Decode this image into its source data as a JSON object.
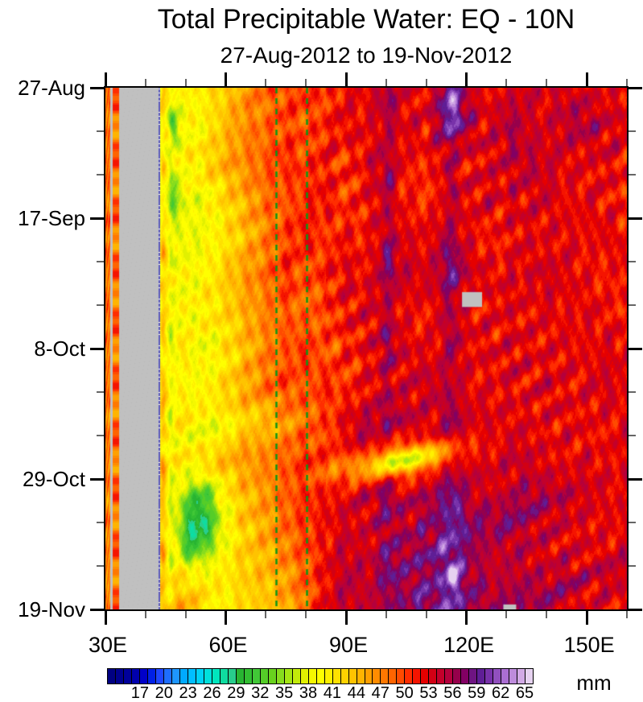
{
  "chart_data": {
    "type": "heatmap",
    "subtype": "hovmoller-time-longitude",
    "title": "Total Precipitable Water: EQ - 10N",
    "subtitle": "27-Aug-2012 to 19-Nov-2012",
    "unit": "mm",
    "x_axis": {
      "range_lon": [
        30,
        160
      ],
      "major_ticks": [
        {
          "label": "30E",
          "lon": 30
        },
        {
          "label": "60E",
          "lon": 60
        },
        {
          "label": "90E",
          "lon": 90
        },
        {
          "label": "120E",
          "lon": 120
        },
        {
          "label": "150E",
          "lon": 150
        }
      ],
      "minor_tick_lons": [
        40,
        50,
        70,
        80,
        100,
        110,
        130,
        140,
        160
      ]
    },
    "y_axis": {
      "range_days": [
        0,
        84
      ],
      "major_ticks": [
        {
          "label": "27-Aug",
          "day": 0
        },
        {
          "label": "17-Sep",
          "day": 21
        },
        {
          "label": "8-Oct",
          "day": 42
        },
        {
          "label": "29-Oct",
          "day": 63
        },
        {
          "label": "19-Nov",
          "day": 84
        }
      ],
      "minor_tick_days": [
        7,
        14,
        28,
        35,
        49,
        56,
        70,
        77
      ]
    },
    "colorbar": {
      "unit_label": "mm",
      "value_min": 13,
      "value_max": 66,
      "box_step": 1,
      "tick_labels": [
        17,
        20,
        23,
        26,
        29,
        32,
        35,
        38,
        41,
        44,
        47,
        50,
        53,
        56,
        59,
        62,
        65
      ],
      "colors": [
        "#000082",
        "#00008F",
        "#00009B",
        "#0000AD",
        "#0000C8",
        "#0020E6",
        "#1E46FF",
        "#1E6EFF",
        "#1E96FF",
        "#00AAFF",
        "#00BEFF",
        "#00D2F5",
        "#00E0DC",
        "#00E6BE",
        "#0FDCA0",
        "#28CD8C",
        "#28B432",
        "#32BE32",
        "#41C837",
        "#55CD28",
        "#69D21E",
        "#87DC1E",
        "#A5E614",
        "#C3EB0A",
        "#E1F000",
        "#F5F800",
        "#FFFF00",
        "#FFF000",
        "#FFE100",
        "#FFD200",
        "#FFC300",
        "#FFB400",
        "#FFA000",
        "#FF8C00",
        "#FF7800",
        "#FF6400",
        "#FF4B00",
        "#FF2D00",
        "#F51400",
        "#E60000",
        "#D20014",
        "#C3002B",
        "#B4003C",
        "#96004B",
        "#820064",
        "#6E1482",
        "#5F1E96",
        "#7832AA",
        "#9150BE",
        "#AA6ED2",
        "#BE8CDC",
        "#D2AAE6",
        "#E6D2F0"
      ]
    },
    "missing_color": "#C0C0C0",
    "masked_lon_band": [
      31.2,
      43.2
    ],
    "coast_red_stripe_lon": [
      31.9,
      33.4
    ],
    "field_edge_line_lon": [
      43.2,
      43.7
    ],
    "left_strip": {
      "lon_band": [
        30,
        31.2
      ],
      "values_by_row": [
        48,
        47,
        48,
        47,
        48,
        47,
        48,
        47,
        48,
        47,
        48,
        47,
        48,
        47,
        48
      ]
    },
    "missing_rects": [
      {
        "lon": [
          118.9,
          123.9
        ],
        "day": [
          32.9,
          35.3
        ]
      },
      {
        "lon": [
          129.2,
          132.4
        ],
        "day": [
          83.2,
          84
        ]
      }
    ],
    "reference_lines": {
      "color": "#0F9614",
      "style": "dashed",
      "lons": [
        72.5,
        80.2
      ]
    },
    "field": {
      "comment": "Approximate TPW (mm) grid read from the shaded plot; rows = days since 27-Aug-2012 step 6, cols = lon 45E..160E step 5",
      "lon_start": 45,
      "lon_step": 5,
      "day_step": 6,
      "values": [
        [
          41,
          40,
          41,
          43,
          46,
          48,
          50,
          51,
          50,
          52,
          53,
          55,
          53,
          52,
          57,
          53,
          52,
          53,
          54,
          53,
          54,
          53,
          52,
          53
        ],
        [
          40,
          39,
          40,
          44,
          47,
          48,
          50,
          49,
          51,
          53,
          52,
          54,
          53,
          52,
          58,
          55,
          53,
          55,
          54,
          53,
          55,
          56,
          54,
          53
        ],
        [
          39,
          40,
          42,
          45,
          47,
          49,
          51,
          50,
          52,
          50,
          53,
          55,
          52,
          51,
          54,
          52,
          53,
          54,
          55,
          54,
          53,
          52,
          53,
          52
        ],
        [
          39,
          38,
          39,
          42,
          45,
          48,
          49,
          51,
          52,
          50,
          52,
          54,
          51,
          50,
          53,
          52,
          54,
          52,
          53,
          54,
          52,
          53,
          52,
          51
        ],
        [
          40,
          38,
          39,
          41,
          44,
          47,
          50,
          52,
          50,
          52,
          51,
          55,
          53,
          52,
          56,
          53,
          51,
          52,
          53,
          52,
          53,
          52,
          53,
          52
        ],
        [
          41,
          39,
          40,
          43,
          46,
          48,
          51,
          49,
          51,
          53,
          52,
          56,
          54,
          53,
          57,
          54,
          53,
          52,
          53,
          54,
          53,
          52,
          51,
          53
        ],
        [
          40,
          39,
          41,
          42,
          45,
          47,
          49,
          48,
          50,
          52,
          53,
          54,
          52,
          51,
          55,
          53,
          52,
          53,
          52,
          53,
          52,
          53,
          52,
          51
        ],
        [
          39,
          41,
          38,
          41,
          44,
          47,
          49,
          51,
          49,
          51,
          52,
          55,
          53,
          52,
          54,
          52,
          53,
          52,
          53,
          52,
          53,
          52,
          53,
          53
        ],
        [
          41,
          39,
          40,
          42,
          45,
          48,
          50,
          49,
          51,
          50,
          52,
          54,
          53,
          54,
          55,
          53,
          52,
          53,
          52,
          54,
          52,
          53,
          54,
          52
        ],
        [
          40,
          42,
          41,
          43,
          45,
          44,
          46,
          48,
          50,
          52,
          53,
          54,
          55,
          53,
          55,
          53,
          54,
          52,
          53,
          52,
          53,
          52,
          52,
          53
        ],
        [
          42,
          41,
          43,
          44,
          46,
          47,
          49,
          51,
          50,
          50,
          49,
          48,
          47,
          49,
          53,
          54,
          53,
          54,
          54,
          53,
          52,
          53,
          52,
          53
        ],
        [
          41,
          38,
          35,
          40,
          44,
          46,
          49,
          51,
          52,
          53,
          54,
          56,
          54,
          56,
          58,
          55,
          54,
          53,
          55,
          54,
          54,
          53,
          53,
          52
        ],
        [
          42,
          37,
          34,
          39,
          43,
          45,
          48,
          50,
          52,
          54,
          53,
          56,
          55,
          55,
          58,
          56,
          54,
          55,
          54,
          54,
          53,
          53,
          52,
          53
        ],
        [
          41,
          42,
          40,
          41,
          43,
          44,
          46,
          49,
          52,
          55,
          54,
          56,
          56,
          57,
          59,
          57,
          55,
          54,
          55,
          53,
          54,
          52,
          53,
          53
        ],
        [
          43,
          45,
          42,
          40,
          42,
          43,
          45,
          48,
          53,
          55,
          54,
          56,
          57,
          58,
          60,
          57,
          56,
          55,
          54,
          55,
          53,
          52,
          53,
          52
        ]
      ]
    },
    "render_hints": {
      "streaks": [
        {
          "lon": 44.4,
          "w": 0.45,
          "amp": 4.0
        },
        {
          "lon": 46.3,
          "w": 0.45,
          "amp": -3.0
        },
        {
          "lon": 100.6,
          "w": 1.1,
          "amp": 2.4
        },
        {
          "lon": 117.2,
          "w": 1.2,
          "amp": 3.0
        },
        {
          "lon": 131.5,
          "w": 0.9,
          "amp": 1.6
        },
        {
          "lon": 108.2,
          "w": 0.7,
          "amp": 1.4
        }
      ],
      "blobs": [
        {
          "lon": 52.5,
          "day": 69.5,
          "rlon": 3.2,
          "rday": 4.2,
          "amp": -7,
          "slope": 0
        },
        {
          "lon": 50.5,
          "day": 74.5,
          "rlon": 1.5,
          "rday": 2.2,
          "amp": -4,
          "slope": 0
        },
        {
          "lon": 47.0,
          "day": 6.0,
          "rlon": 0.8,
          "rday": 2.0,
          "amp": -8,
          "slope": 0
        },
        {
          "lon": 47.0,
          "day": 18.0,
          "rlon": 0.8,
          "rday": 2.0,
          "amp": -7,
          "slope": 0
        },
        {
          "lon": 104.0,
          "day": 60.0,
          "rlon": 7.5,
          "rday": 2.0,
          "amp": -11,
          "slope": -3.9
        },
        {
          "lon": 58.0,
          "day": 55.0,
          "rlon": 6.0,
          "rday": 2.2,
          "amp": -4,
          "slope": -2
        },
        {
          "lon": 117.0,
          "day": 2.0,
          "rlon": 3.0,
          "rday": 3.5,
          "amp": 3,
          "slope": 0
        },
        {
          "lon": 126.0,
          "day": 70.0,
          "rlon": 7.0,
          "rday": 4.5,
          "amp": 2.5,
          "slope": -3
        },
        {
          "lon": 146.0,
          "day": 80.0,
          "rlon": 7.0,
          "rday": 3.5,
          "amp": 2.5,
          "slope": -3
        },
        {
          "lon": 95.0,
          "day": 57.0,
          "rlon": 3.5,
          "rday": 4.0,
          "amp": 3,
          "slope": 0
        },
        {
          "lon": 116.5,
          "day": 78.5,
          "rlon": 0.9,
          "rday": 1.4,
          "amp": 6,
          "slope": 0
        }
      ]
    }
  },
  "labels": {
    "title": "Total Precipitable Water: EQ - 10N",
    "subtitle": "27-Aug-2012 to 19-Nov-2012",
    "unit": "mm"
  }
}
